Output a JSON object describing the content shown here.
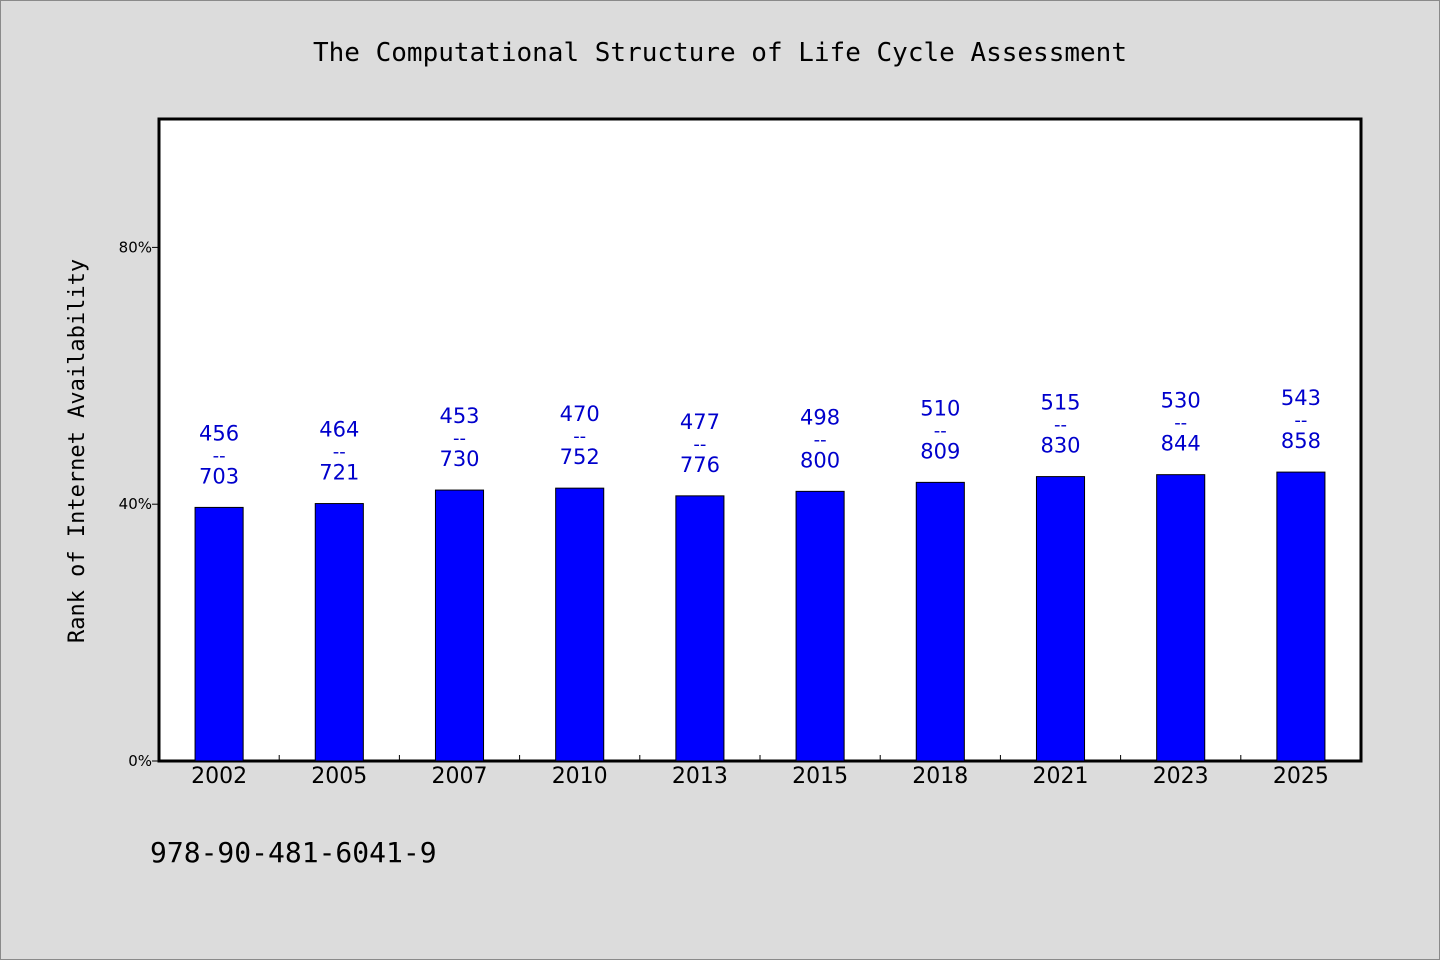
{
  "chart_data": {
    "type": "bar",
    "title": "The Computational Structure of Life Cycle Assessment",
    "ylabel": "Rank of Internet Availability",
    "xlabel": "",
    "categories": [
      "2002",
      "2005",
      "2007",
      "2010",
      "2013",
      "2015",
      "2018",
      "2021",
      "2023",
      "2025"
    ],
    "values": [
      39.5,
      40.1,
      42.2,
      42.5,
      41.3,
      42.0,
      43.4,
      44.3,
      44.6,
      45.0
    ],
    "value_labels": [
      {
        "top": "456",
        "sep": "--",
        "bottom": "703"
      },
      {
        "top": "464",
        "sep": "--",
        "bottom": "721"
      },
      {
        "top": "453",
        "sep": "--",
        "bottom": "730"
      },
      {
        "top": "470",
        "sep": "--",
        "bottom": "752"
      },
      {
        "top": "477",
        "sep": "--",
        "bottom": "776"
      },
      {
        "top": "498",
        "sep": "--",
        "bottom": "800"
      },
      {
        "top": "510",
        "sep": "--",
        "bottom": "809"
      },
      {
        "top": "515",
        "sep": "--",
        "bottom": "830"
      },
      {
        "top": "530",
        "sep": "--",
        "bottom": "844"
      },
      {
        "top": "543",
        "sep": "--",
        "bottom": "858"
      }
    ],
    "yticks": [
      0,
      40,
      80
    ],
    "ytick_labels": [
      "0%",
      "40%",
      "80%"
    ],
    "ylim": [
      0,
      100
    ],
    "grid": false,
    "legend": "none",
    "bar_color": "#0000ff",
    "label_color": "#0000cc",
    "background_color": "#dcdcdc",
    "plot_background_color": "#ffffff"
  },
  "footnote": "978-90-481-6041-9"
}
